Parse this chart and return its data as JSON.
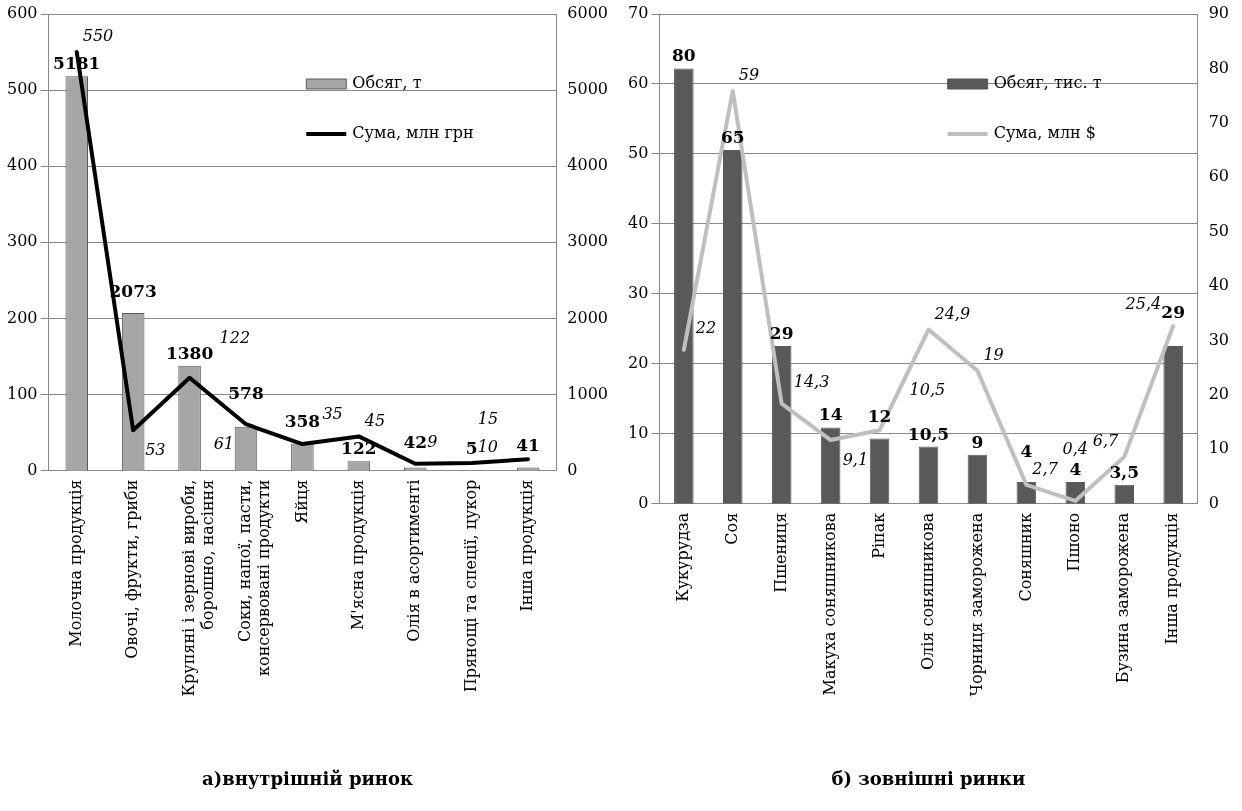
{
  "chart_data": [
    {
      "type": "bar",
      "title": "а)внутрішній ринок",
      "categories": [
        "Молочна продукція",
        "Овочі, фрукти, гриби",
        "Крупяні і зернові вироби, борошно, насіння",
        "Соки, напої, пасти, консервовані продукти",
        "Яйця",
        "М'ясна продукція",
        "Олія в асортименті",
        "Прянощі та спеції, цукор",
        "Інша продукція"
      ],
      "series": [
        {
          "name": "Обсяг, т",
          "axis": "y2",
          "color": "#a6a6a6",
          "values": [
            5181,
            2073,
            1380,
            578,
            358,
            122,
            42,
            5,
            41
          ],
          "value_labels": [
            "5181",
            "2073",
            "1380",
            "578",
            "358",
            "122",
            "42",
            "5",
            "41"
          ]
        },
        {
          "name": "Сума, млн грн",
          "type": "line",
          "axis": "y",
          "color": "#000000",
          "values": [
            550,
            53,
            122,
            61,
            35,
            45,
            9,
            10,
            15
          ],
          "value_labels": [
            "550",
            "53",
            "122",
            "61",
            "35",
            "45",
            "9",
            "10",
            "15"
          ]
        }
      ],
      "ylim": [
        0,
        600
      ],
      "yticks": [
        0,
        100,
        200,
        300,
        400,
        500,
        600
      ],
      "y2lim": [
        0,
        6000
      ],
      "y2ticks": [
        0,
        1000,
        2000,
        3000,
        4000,
        5000,
        6000
      ],
      "grid": "y",
      "legend": "top right",
      "marker": "none"
    },
    {
      "type": "bar",
      "title": "б) зовнішні ринки",
      "categories": [
        "Кукурудза",
        "Соя",
        "Пшениця",
        "Макуха соняшникова",
        "Ріпак",
        "Олія соняшникова",
        "Чорниця заморожена",
        "Соняшник",
        "Пшоно",
        "Бузина заморожена",
        "Інша продукція"
      ],
      "series": [
        {
          "name": "Обсяг, тис. т",
          "axis": "y2",
          "color": "#595959",
          "values": [
            80,
            65,
            29,
            14,
            12,
            10.5,
            9,
            4,
            4,
            3.5,
            29
          ],
          "value_labels": [
            "80",
            "65",
            "29",
            "14",
            "12",
            "10,5",
            "9",
            "4",
            "4",
            "3,5",
            "29"
          ]
        },
        {
          "name": "Сума, млн $",
          "type": "line",
          "axis": "y",
          "color": "#bfbfbf",
          "values": [
            22,
            59,
            14.3,
            9.1,
            10.5,
            24.9,
            19,
            2.7,
            0.4,
            6.7,
            25.4
          ],
          "value_labels": [
            "22",
            "59",
            "14,3",
            "9,1",
            "10,5",
            "24,9",
            "19",
            "2,7",
            "0,4",
            "6,7",
            "25,4"
          ]
        }
      ],
      "ylim": [
        0,
        70
      ],
      "yticks": [
        0,
        10,
        20,
        30,
        40,
        50,
        60,
        70
      ],
      "y2lim": [
        0,
        90
      ],
      "y2ticks": [
        0,
        10,
        20,
        30,
        40,
        50,
        60,
        70,
        80,
        90
      ],
      "grid": "y",
      "legend": "top right",
      "marker": "none"
    }
  ]
}
